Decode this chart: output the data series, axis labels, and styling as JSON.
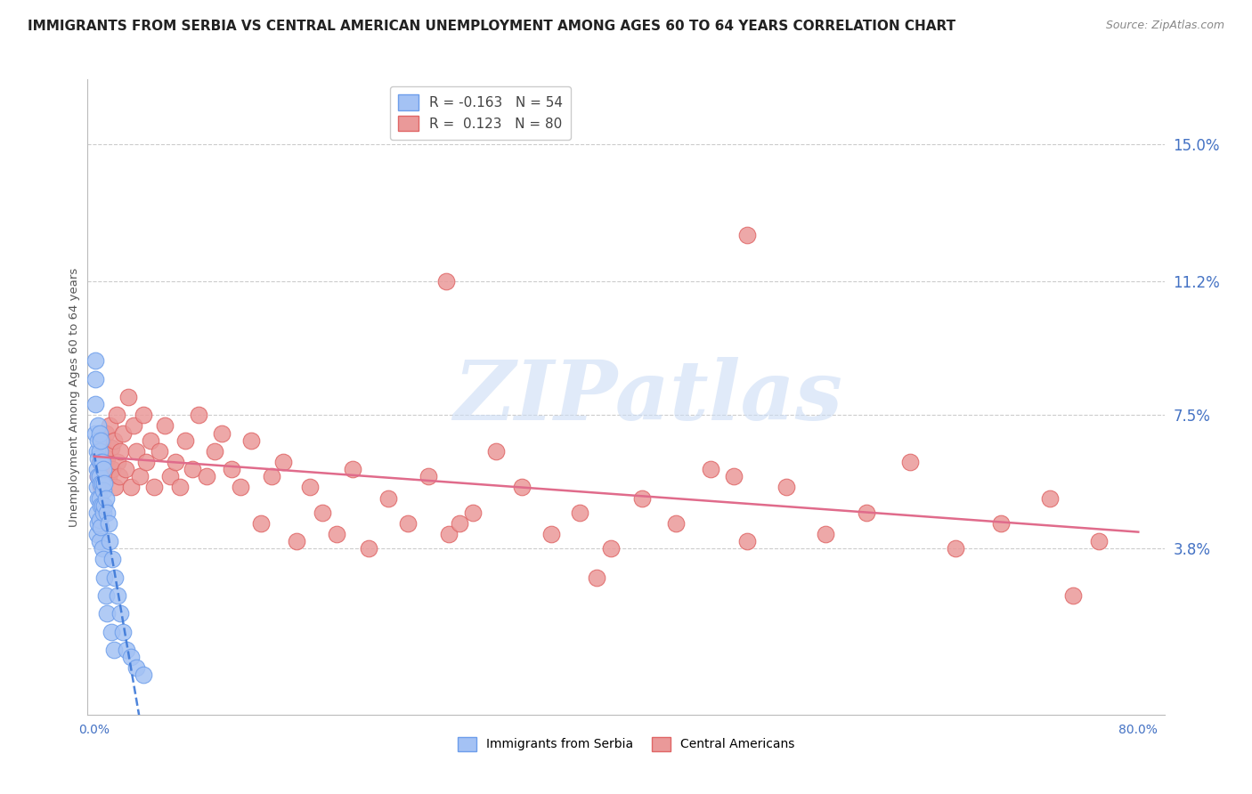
{
  "title": "IMMIGRANTS FROM SERBIA VS CENTRAL AMERICAN UNEMPLOYMENT AMONG AGES 60 TO 64 YEARS CORRELATION CHART",
  "source": "Source: ZipAtlas.com",
  "ylabel": "Unemployment Among Ages 60 to 64 years",
  "y_tick_labels_right": [
    "15.0%",
    "11.2%",
    "7.5%",
    "3.8%"
  ],
  "y_tick_values": [
    0.15,
    0.112,
    0.075,
    0.038
  ],
  "xlim": [
    -0.005,
    0.82
  ],
  "ylim": [
    -0.008,
    0.168
  ],
  "serbia_color": "#a4c2f4",
  "serbia_edge_color": "#6d9eeb",
  "central_color": "#ea9999",
  "central_edge_color": "#e06666",
  "serbia_line_color": "#3c78d8",
  "central_line_color": "#e06b8b",
  "serbia_R": -0.163,
  "serbia_N": 54,
  "central_R": 0.123,
  "central_N": 80,
  "legend_serbia_label": "Immigrants from Serbia",
  "legend_central_label": "Central Americans",
  "watermark_text": "ZIPatlas",
  "background_color": "#ffffff",
  "grid_color": "#cccccc",
  "right_label_color": "#4472c4",
  "title_fontsize": 11.0,
  "source_fontsize": 9,
  "axis_fontsize": 10,
  "legend_fontsize": 11,
  "serbia_x": [
    0.001,
    0.001,
    0.001,
    0.001,
    0.002,
    0.002,
    0.002,
    0.002,
    0.002,
    0.003,
    0.003,
    0.003,
    0.003,
    0.003,
    0.003,
    0.004,
    0.004,
    0.004,
    0.004,
    0.004,
    0.004,
    0.005,
    0.005,
    0.005,
    0.005,
    0.005,
    0.006,
    0.006,
    0.006,
    0.006,
    0.007,
    0.007,
    0.007,
    0.007,
    0.008,
    0.008,
    0.008,
    0.009,
    0.009,
    0.01,
    0.01,
    0.011,
    0.012,
    0.013,
    0.014,
    0.015,
    0.016,
    0.018,
    0.02,
    0.022,
    0.025,
    0.028,
    0.032,
    0.038
  ],
  "serbia_y": [
    0.09,
    0.085,
    0.078,
    0.07,
    0.065,
    0.06,
    0.055,
    0.048,
    0.042,
    0.072,
    0.068,
    0.063,
    0.058,
    0.052,
    0.045,
    0.07,
    0.065,
    0.058,
    0.052,
    0.046,
    0.04,
    0.068,
    0.062,
    0.056,
    0.05,
    0.044,
    0.062,
    0.056,
    0.05,
    0.038,
    0.06,
    0.054,
    0.048,
    0.035,
    0.056,
    0.05,
    0.03,
    0.052,
    0.025,
    0.048,
    0.02,
    0.045,
    0.04,
    0.015,
    0.035,
    0.01,
    0.03,
    0.025,
    0.02,
    0.015,
    0.01,
    0.008,
    0.005,
    0.003
  ],
  "central_x": [
    0.003,
    0.004,
    0.005,
    0.006,
    0.007,
    0.008,
    0.009,
    0.01,
    0.011,
    0.012,
    0.013,
    0.014,
    0.015,
    0.016,
    0.017,
    0.018,
    0.019,
    0.02,
    0.022,
    0.024,
    0.026,
    0.028,
    0.03,
    0.032,
    0.035,
    0.038,
    0.04,
    0.043,
    0.046,
    0.05,
    0.054,
    0.058,
    0.062,
    0.066,
    0.07,
    0.075,
    0.08,
    0.086,
    0.092,
    0.098,
    0.105,
    0.112,
    0.12,
    0.128,
    0.136,
    0.145,
    0.155,
    0.165,
    0.175,
    0.186,
    0.198,
    0.21,
    0.225,
    0.24,
    0.256,
    0.272,
    0.29,
    0.308,
    0.328,
    0.35,
    0.372,
    0.396,
    0.42,
    0.446,
    0.472,
    0.5,
    0.53,
    0.56,
    0.592,
    0.625,
    0.66,
    0.695,
    0.732,
    0.77,
    0.385,
    0.5,
    0.27,
    0.28,
    0.49,
    0.75
  ],
  "central_y": [
    0.058,
    0.062,
    0.055,
    0.068,
    0.06,
    0.065,
    0.07,
    0.063,
    0.058,
    0.072,
    0.066,
    0.06,
    0.068,
    0.055,
    0.075,
    0.062,
    0.058,
    0.065,
    0.07,
    0.06,
    0.08,
    0.055,
    0.072,
    0.065,
    0.058,
    0.075,
    0.062,
    0.068,
    0.055,
    0.065,
    0.072,
    0.058,
    0.062,
    0.055,
    0.068,
    0.06,
    0.075,
    0.058,
    0.065,
    0.07,
    0.06,
    0.055,
    0.068,
    0.045,
    0.058,
    0.062,
    0.04,
    0.055,
    0.048,
    0.042,
    0.06,
    0.038,
    0.052,
    0.045,
    0.058,
    0.042,
    0.048,
    0.065,
    0.055,
    0.042,
    0.048,
    0.038,
    0.052,
    0.045,
    0.06,
    0.04,
    0.055,
    0.042,
    0.048,
    0.062,
    0.038,
    0.045,
    0.052,
    0.04,
    0.03,
    0.125,
    0.112,
    0.045,
    0.058,
    0.025
  ]
}
